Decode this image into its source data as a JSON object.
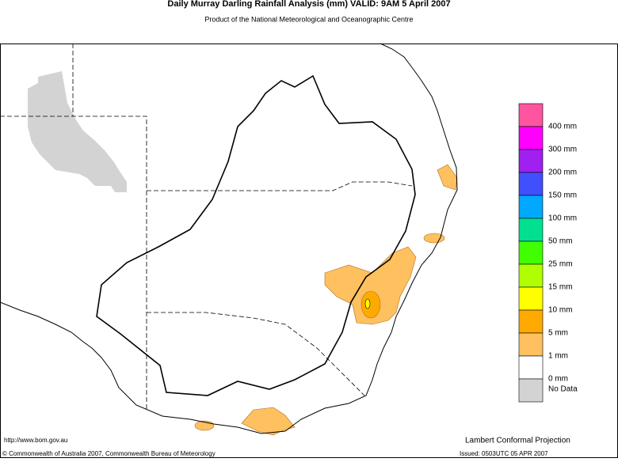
{
  "header": {
    "title": "Daily Murray Darling Rainfall Analysis (mm)  VALID: 9AM  5 April 2007",
    "subtitle": "Product of the National Meteorological and Oceanographic Centre"
  },
  "legend": {
    "items": [
      {
        "label": "400 mm",
        "color": "#ff55a0"
      },
      {
        "label": "300 mm",
        "color": "#ff00ff"
      },
      {
        "label": "200 mm",
        "color": "#a020f0"
      },
      {
        "label": "150 mm",
        "color": "#4050ff"
      },
      {
        "label": "100 mm",
        "color": "#00a8ff"
      },
      {
        "label": "50 mm",
        "color": "#00e090"
      },
      {
        "label": "25 mm",
        "color": "#40ff00"
      },
      {
        "label": "15 mm",
        "color": "#b0ff00"
      },
      {
        "label": "10 mm",
        "color": "#ffff00"
      },
      {
        "label": "5 mm",
        "color": "#ffaa00"
      },
      {
        "label": "1 mm",
        "color": "#ffc060"
      },
      {
        "label": "0 mm",
        "color": "#ffffff"
      },
      {
        "label": "No Data",
        "color": "#d3d3d3"
      }
    ]
  },
  "footer": {
    "url": "http://www.bom.gov.au",
    "projection": "Lambert Conformal Projection",
    "copyright": "© Commonwealth of Australia 2007, Commonwealth Bureau of Meteorology",
    "issued": "Issued: 0503UTC 05 APR 2007"
  }
}
